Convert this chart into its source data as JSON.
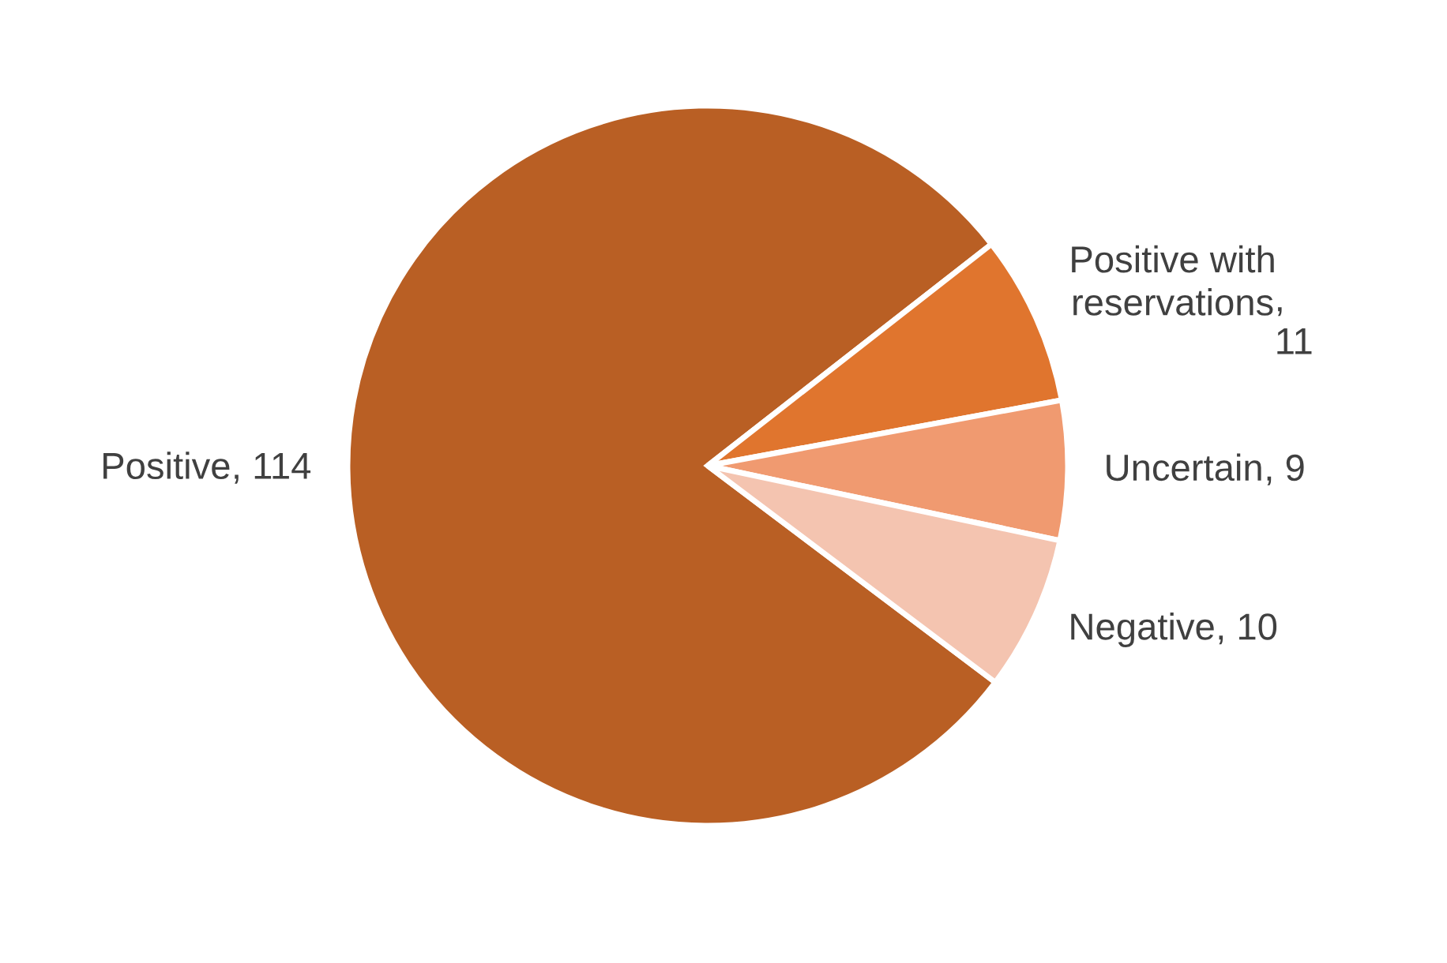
{
  "chart_data": {
    "type": "pie",
    "categories": [
      "Positive",
      "Positive with reservations",
      "Uncertain",
      "Negative"
    ],
    "values": [
      114,
      11,
      9,
      10
    ],
    "colors": [
      "#b95f24",
      "#e0752e",
      "#f09a70",
      "#f4c4b0"
    ],
    "value_labels": [
      ", 114",
      ",\n11",
      ", 9",
      ", 10"
    ],
    "legend": false
  }
}
